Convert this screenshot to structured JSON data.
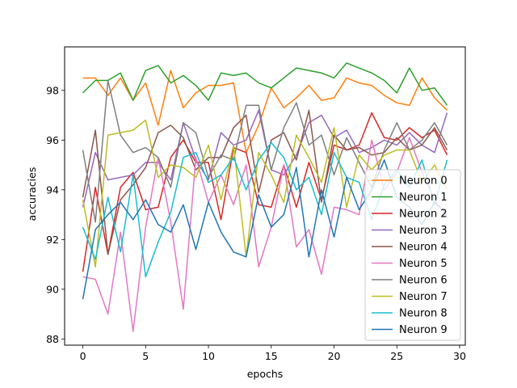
{
  "chart_data": {
    "type": "line",
    "title": "",
    "xlabel": "epochs",
    "ylabel": "accuracies",
    "xlim": [
      -1.45,
      30.45
    ],
    "ylim": [
      87.75,
      99.75
    ],
    "xticks": [
      0,
      5,
      10,
      15,
      20,
      25,
      30
    ],
    "yticks": [
      88,
      90,
      92,
      94,
      96,
      98
    ],
    "grid": false,
    "legend_position": "lower-right",
    "x": [
      0,
      1,
      2,
      3,
      4,
      5,
      6,
      7,
      8,
      9,
      10,
      11,
      12,
      13,
      14,
      15,
      16,
      17,
      18,
      19,
      20,
      21,
      22,
      23,
      24,
      25,
      26,
      27,
      28,
      29
    ],
    "series": [
      {
        "name": "Neuron 0",
        "color": "#ff7f0e",
        "values": [
          98.5,
          98.5,
          97.8,
          98.5,
          97.6,
          98.3,
          96.6,
          98.8,
          97.3,
          97.9,
          98.2,
          98.2,
          98.3,
          95.5,
          96.6,
          98.1,
          97.3,
          97.7,
          98.2,
          97.6,
          97.7,
          98.5,
          98.3,
          98.2,
          97.8,
          97.5,
          97.4,
          98.5,
          97.7,
          97.2
        ]
      },
      {
        "name": "Neuron 1",
        "color": "#2ca02c",
        "values": [
          97.9,
          98.4,
          98.4,
          98.7,
          97.6,
          98.8,
          99.0,
          98.3,
          98.6,
          98.2,
          97.6,
          98.7,
          98.6,
          98.7,
          98.3,
          98.1,
          98.5,
          98.9,
          98.8,
          98.7,
          98.5,
          99.1,
          98.9,
          98.7,
          98.4,
          97.9,
          98.9,
          98.0,
          98.1,
          97.4
        ]
      },
      {
        "name": "Neuron 2",
        "color": "#d62728",
        "values": [
          90.7,
          94.1,
          91.4,
          94.1,
          94.7,
          93.2,
          93.3,
          95.3,
          96.0,
          95.1,
          95.1,
          92.8,
          95.7,
          95.5,
          93.4,
          93.3,
          95.0,
          93.3,
          95.1,
          93.6,
          95.8,
          95.6,
          95.8,
          97.1,
          96.1,
          96.0,
          96.5,
          96.1,
          96.4,
          95.4
        ]
      },
      {
        "name": "Neuron 3",
        "color": "#9467bd",
        "values": [
          93.3,
          95.5,
          94.4,
          94.5,
          94.6,
          95.1,
          95.1,
          94.4,
          96.7,
          95.2,
          94.4,
          96.3,
          95.8,
          96.0,
          97.2,
          94.8,
          94.6,
          95.4,
          96.7,
          97.0,
          96.1,
          96.4,
          95.5,
          95.7,
          96.0,
          95.8,
          96.3,
          95.8,
          95.5,
          97.1
        ]
      },
      {
        "name": "Neuron 4",
        "color": "#8c564b",
        "values": [
          93.7,
          96.4,
          91.4,
          93.6,
          94.2,
          94.9,
          96.3,
          96.6,
          96.1,
          94.8,
          95.3,
          95.3,
          96.5,
          97.0,
          93.9,
          96.0,
          96.3,
          95.2,
          97.2,
          93.5,
          96.2,
          95.6,
          95.7,
          95.4,
          95.5,
          96.1,
          95.6,
          95.8,
          96.5,
          95.6
        ]
      },
      {
        "name": "Neuron 5",
        "color": "#e377c2",
        "values": [
          90.5,
          90.4,
          89.0,
          92.3,
          88.3,
          92.5,
          95.3,
          92.7,
          89.2,
          95.3,
          93.5,
          94.6,
          93.4,
          95.0,
          90.9,
          92.5,
          95.0,
          91.7,
          92.4,
          90.6,
          93.3,
          93.2,
          93.0,
          96.0,
          94.0,
          94.7,
          96.1,
          94.7,
          93.6,
          92.9
        ]
      },
      {
        "name": "Neuron 6",
        "color": "#7f7f7f",
        "values": [
          95.6,
          92.7,
          98.4,
          96.2,
          95.5,
          95.7,
          95.3,
          94.1,
          96.7,
          96.3,
          94.5,
          95.4,
          95.2,
          97.4,
          97.4,
          94.8,
          96.5,
          97.5,
          95.8,
          96.2,
          94.6,
          96.1,
          95.1,
          94.1,
          95.6,
          96.7,
          95.6,
          96.0,
          96.7,
          95.8
        ]
      },
      {
        "name": "Neuron 7",
        "color": "#bcbd22",
        "values": [
          93.6,
          90.9,
          96.2,
          96.3,
          96.4,
          96.8,
          94.5,
          95.0,
          94.9,
          94.5,
          95.8,
          93.6,
          95.8,
          91.3,
          95.5,
          94.6,
          93.5,
          96.2,
          95.3,
          94.3,
          96.5,
          93.3,
          95.4,
          94.8,
          95.4,
          95.6,
          95.6,
          94.3,
          95.0,
          94.0
        ]
      },
      {
        "name": "Neuron 8",
        "color": "#17becf",
        "values": [
          92.5,
          91.2,
          93.7,
          91.5,
          94.6,
          90.5,
          91.9,
          93.1,
          95.3,
          95.5,
          94.3,
          94.6,
          95.3,
          94.0,
          95.2,
          95.9,
          95.3,
          94.0,
          94.5,
          93.0,
          95.5,
          94.5,
          94.3,
          92.8,
          94.2,
          94.8,
          94.1,
          95.2,
          93.4,
          95.2
        ]
      },
      {
        "name": "Neuron 9",
        "color": "#1f77b4",
        "values": [
          89.6,
          92.4,
          93.0,
          93.5,
          92.8,
          93.6,
          92.6,
          92.3,
          93.4,
          91.6,
          93.5,
          92.3,
          91.5,
          91.3,
          93.8,
          92.5,
          93.0,
          94.9,
          91.3,
          94.0,
          92.1,
          94.5,
          93.2,
          94.0,
          95.2,
          93.7,
          93.3,
          92.6,
          93.5,
          93.0
        ]
      }
    ]
  }
}
